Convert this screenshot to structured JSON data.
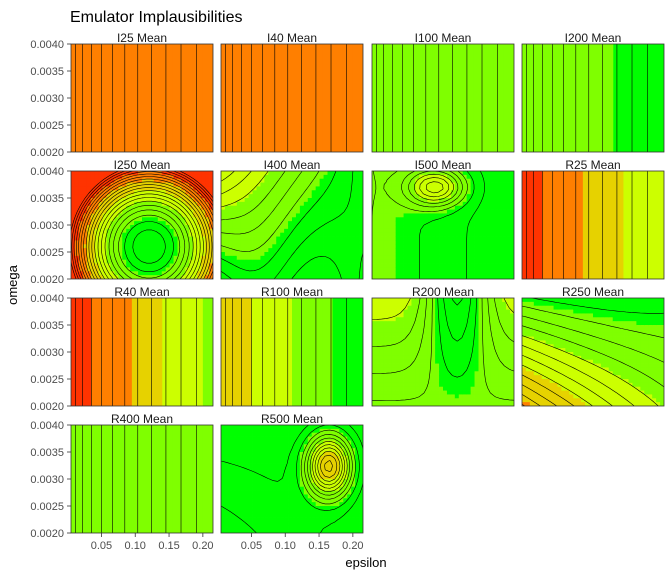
{
  "chart_data": {
    "type": "contour",
    "title": "Emulator Implausibilities",
    "xlabel": "epsilon",
    "ylabel": "omega",
    "xlim": [
      0.005,
      0.215
    ],
    "ylim": [
      0.002,
      0.004
    ],
    "x_ticks": [
      "0.05",
      "0.10",
      "0.15",
      "0.20"
    ],
    "x_tick_values": [
      0.05,
      0.1,
      0.15,
      0.2
    ],
    "y_ticks": [
      "0.0020",
      "0.0025",
      "0.0030",
      "0.0035",
      "0.0040"
    ],
    "y_tick_values": [
      0.002,
      0.0025,
      0.003,
      0.0035,
      0.004
    ],
    "color_scale": [
      "#00ff00",
      "#7fff00",
      "#ccff00",
      "#e6d200",
      "#ff7f00",
      "#ff3300"
    ],
    "grid": false,
    "legend": "none",
    "facets": [
      {
        "label": "I25 Mean",
        "kind": "vertical",
        "base": 0.74,
        "amp": 0.04
      },
      {
        "label": "I40 Mean",
        "kind": "vertical",
        "base": 0.76,
        "amp": 0.04
      },
      {
        "label": "I100 Mean",
        "kind": "vertical",
        "base": 0.32,
        "amp": -0.14
      },
      {
        "label": "I200 Mean",
        "kind": "vertical",
        "base": 0.2,
        "amp": -0.05
      },
      {
        "label": "I250 Mean",
        "kind": "bowl",
        "base": 0.05
      },
      {
        "label": "I400 Mean",
        "kind": "diag",
        "base": 0.06
      },
      {
        "label": "I500 Mean",
        "kind": "hill",
        "base": 0.04
      },
      {
        "label": "R25 Mean",
        "kind": "vertical",
        "base": 0.92,
        "amp": -0.6
      },
      {
        "label": "R40 Mean",
        "kind": "vertical",
        "base": 0.92,
        "amp": -0.62
      },
      {
        "label": "R100 Mean",
        "kind": "vertical",
        "base": 0.6,
        "amp": -0.55
      },
      {
        "label": "R200 Mean",
        "kind": "arch",
        "base": 0.03
      },
      {
        "label": "R250 Mean",
        "kind": "slope",
        "base": 0.1
      },
      {
        "label": "R400 Mean",
        "kind": "vertical",
        "base": 0.18,
        "amp": 0.15
      },
      {
        "label": "R500 Mean",
        "kind": "blob",
        "base": 0.05
      }
    ]
  }
}
